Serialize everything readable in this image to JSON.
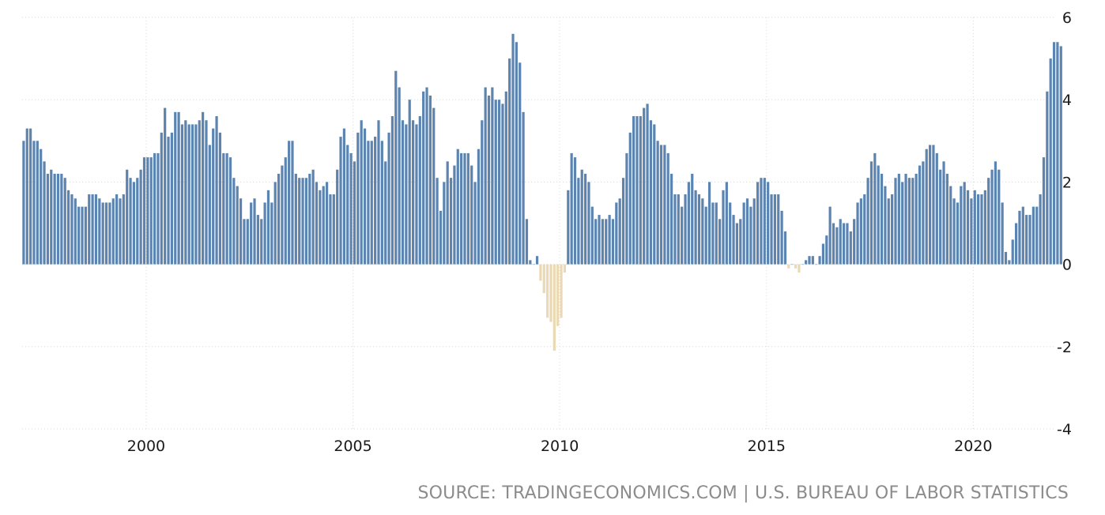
{
  "chart_data": {
    "type": "bar",
    "title": "",
    "xlabel": "",
    "ylabel": "",
    "x_start": "1997-01",
    "frequency": "monthly",
    "ylim": [
      -4,
      6
    ],
    "y_ticks": [
      "6",
      "4",
      "2",
      "0",
      "-2",
      "-4"
    ],
    "x_ticks": [
      {
        "label": "2000",
        "date": "2000-01"
      },
      {
        "label": "2005",
        "date": "2005-01"
      },
      {
        "label": "2010",
        "date": "2010-01"
      },
      {
        "label": "2015",
        "date": "2015-01"
      },
      {
        "label": "2020",
        "date": "2020-01"
      }
    ],
    "grid": true,
    "colors": {
      "positive": "#5b84b1",
      "negative": "#ead9b2"
    },
    "values": [
      3.0,
      3.3,
      3.3,
      3.0,
      3.0,
      2.8,
      2.5,
      2.2,
      2.3,
      2.2,
      2.2,
      2.2,
      2.1,
      1.8,
      1.7,
      1.6,
      1.4,
      1.4,
      1.4,
      1.7,
      1.7,
      1.7,
      1.6,
      1.5,
      1.5,
      1.5,
      1.6,
      1.7,
      1.6,
      1.7,
      2.3,
      2.1,
      2.0,
      2.1,
      2.3,
      2.6,
      2.6,
      2.6,
      2.7,
      2.7,
      3.2,
      3.8,
      3.1,
      3.2,
      3.7,
      3.7,
      3.4,
      3.5,
      3.4,
      3.4,
      3.4,
      3.5,
      3.7,
      3.5,
      2.9,
      3.3,
      3.6,
      3.2,
      2.7,
      2.7,
      2.6,
      2.1,
      1.9,
      1.6,
      1.1,
      1.1,
      1.5,
      1.6,
      1.2,
      1.1,
      1.5,
      1.8,
      1.5,
      2.0,
      2.2,
      2.4,
      2.6,
      3.0,
      3.0,
      2.2,
      2.1,
      2.1,
      2.1,
      2.2,
      2.3,
      2.0,
      1.8,
      1.9,
      2.0,
      1.7,
      1.7,
      2.3,
      3.1,
      3.3,
      2.9,
      2.7,
      2.5,
      3.2,
      3.5,
      3.3,
      3.0,
      3.0,
      3.1,
      3.5,
      3.0,
      2.5,
      3.2,
      3.6,
      4.7,
      4.3,
      3.5,
      3.4,
      4.0,
      3.5,
      3.4,
      3.6,
      4.2,
      4.3,
      4.1,
      3.8,
      2.1,
      1.3,
      2.0,
      2.5,
      2.1,
      2.4,
      2.8,
      2.7,
      2.7,
      2.7,
      2.4,
      2.0,
      2.8,
      3.5,
      4.3,
      4.1,
      4.3,
      4.0,
      4.0,
      3.9,
      4.2,
      5.0,
      5.6,
      5.4,
      4.9,
      3.7,
      1.1,
      0.1,
      0.0,
      0.2,
      -0.4,
      -0.7,
      -1.3,
      -1.4,
      -2.1,
      -1.5,
      -1.3,
      -0.2,
      1.8,
      2.7,
      2.6,
      2.1,
      2.3,
      2.2,
      2.0,
      1.4,
      1.1,
      1.2,
      1.1,
      1.1,
      1.2,
      1.1,
      1.5,
      1.6,
      2.1,
      2.7,
      3.2,
      3.6,
      3.6,
      3.6,
      3.8,
      3.9,
      3.5,
      3.4,
      3.0,
      2.9,
      2.9,
      2.7,
      2.2,
      1.7,
      1.7,
      1.4,
      1.7,
      2.0,
      2.2,
      1.8,
      1.7,
      1.6,
      1.4,
      2.0,
      1.5,
      1.5,
      1.1,
      1.8,
      2.0,
      1.5,
      1.2,
      1.0,
      1.1,
      1.5,
      1.6,
      1.4,
      1.6,
      2.0,
      2.1,
      2.1,
      2.0,
      1.7,
      1.7,
      1.7,
      1.3,
      0.8,
      -0.1,
      0.0,
      -0.1,
      -0.2,
      0.0,
      0.1,
      0.2,
      0.2,
      0.0,
      0.2,
      0.5,
      0.7,
      1.4,
      1.0,
      0.9,
      1.1,
      1.0,
      1.0,
      0.8,
      1.1,
      1.5,
      1.6,
      1.7,
      2.1,
      2.5,
      2.7,
      2.4,
      2.2,
      1.9,
      1.6,
      1.7,
      2.1,
      2.2,
      2.0,
      2.2,
      2.1,
      2.1,
      2.2,
      2.4,
      2.5,
      2.8,
      2.9,
      2.9,
      2.7,
      2.3,
      2.5,
      2.2,
      1.9,
      1.6,
      1.5,
      1.9,
      2.0,
      1.8,
      1.6,
      1.8,
      1.7,
      1.7,
      1.8,
      2.1,
      2.3,
      2.5,
      2.3,
      1.5,
      0.3,
      0.1,
      0.6,
      1.0,
      1.3,
      1.4,
      1.2,
      1.2,
      1.4,
      1.4,
      1.7,
      2.6,
      4.2,
      5.0,
      5.4,
      5.4,
      5.3
    ]
  },
  "source": "SOURCE: TRADINGECONOMICS.COM | U.S. BUREAU OF LABOR STATISTICS"
}
